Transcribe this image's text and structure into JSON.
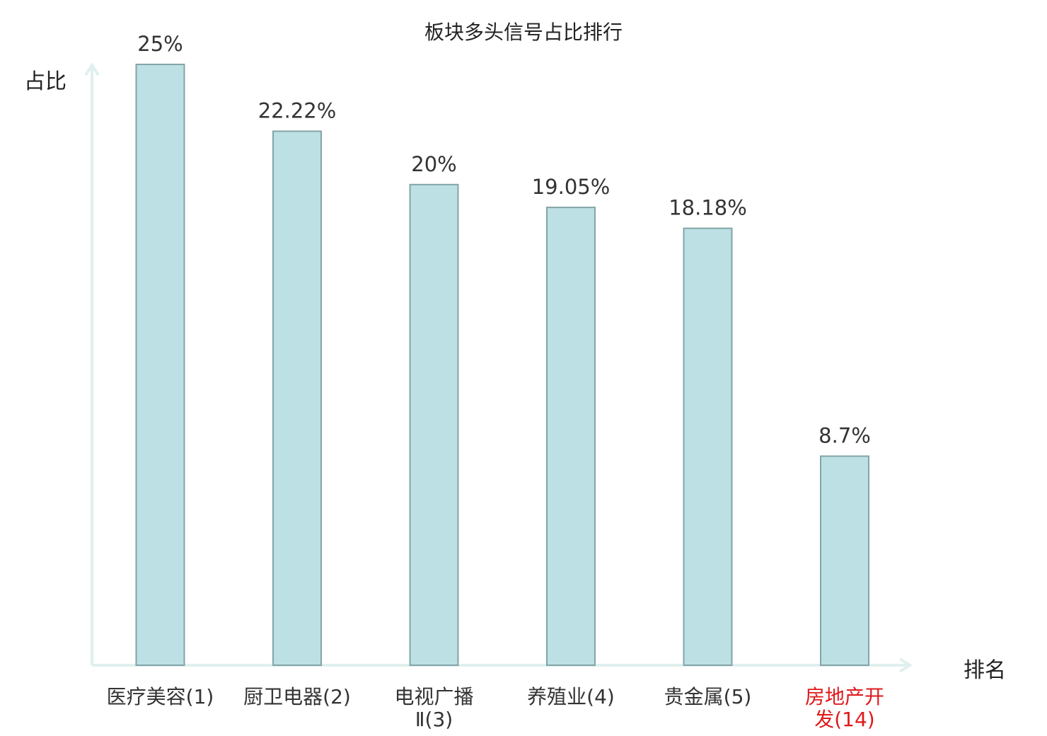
{
  "chart_data": {
    "type": "bar",
    "title": "板块多头信号占比排行",
    "xlabel": "排名",
    "ylabel": "占比",
    "ylim": [
      0,
      25
    ],
    "grid": false,
    "categories": [
      [
        "医疗美容(1)"
      ],
      [
        "厨卫电器(2)"
      ],
      [
        "电视广播",
        "Ⅱ(3)"
      ],
      [
        "养殖业(4)"
      ],
      [
        "贵金属(5)"
      ],
      [
        "房地产开",
        "发(14)"
      ]
    ],
    "values": [
      25,
      22.22,
      20,
      19.05,
      18.18,
      8.7
    ],
    "value_labels": [
      "25%",
      "22.22%",
      "20%",
      "19.05%",
      "18.18%",
      "8.7%"
    ],
    "highlight_index": 5,
    "colors": {
      "bar_fill": "#bce0e3",
      "bar_stroke": "#84a4a8",
      "axis": "#dff0ee",
      "text": "#333333",
      "highlight_text": "#e0191b"
    }
  }
}
